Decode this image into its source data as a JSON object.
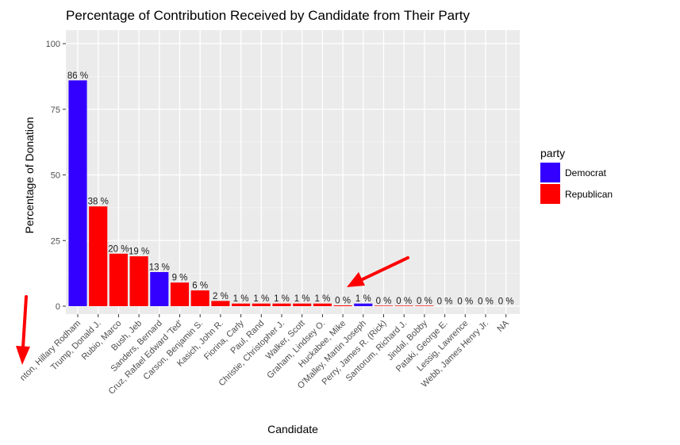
{
  "chart_data": {
    "type": "bar",
    "title": "Percentage of Contribution Received by Candidate from Their Party",
    "xlabel": "Candidate",
    "ylabel": "Percentage of Donation",
    "ylim": [
      0,
      100
    ],
    "yticks": [
      0,
      25,
      50,
      75,
      100
    ],
    "grid": true,
    "legend": {
      "title": "party",
      "placement": "right",
      "entries": [
        {
          "name": "Democrat",
          "color": "#3300ff"
        },
        {
          "name": "Republican",
          "color": "#ff0000"
        }
      ]
    },
    "categories": [
      "Clinton, Hillary Rodham",
      "Trump, Donald J.",
      "Rubio, Marco",
      "Bush, Jeb",
      "Sanders, Bernard",
      "Cruz, Rafael Edward 'Ted'",
      "Carson, Benjamin S.",
      "Kasich, John R.",
      "Fiorina, Carly",
      "Paul, Rand",
      "Christie, Christopher J.",
      "Walker, Scott",
      "Graham, Lindsey O.",
      "Huckabee, Mike",
      "O'Malley, Martin Joseph",
      "Perry, James R. (Rick)",
      "Santorum, Richard J.",
      "Jindal, Bobby",
      "Pataki, George E.",
      "Lessig, Lawrence",
      "Webb, James Henry Jr.",
      "NA"
    ],
    "x_tick_labels": [
      "nton, Hillary Rodham",
      "Trump, Donald J.",
      "Rubio, Marco",
      "Bush, Jeb",
      "Sanders, Bernard",
      "Cruz, Rafael Edward 'Ted'",
      "Carson, Benjamin S.",
      "Kasich, John R.",
      "Fiorina, Carly",
      "Paul, Rand",
      "Christie, Christopher J.",
      "Walker, Scott",
      "Graham, Lindsey O.",
      "Huckabee, Mike",
      "O'Malley, Martin Joseph",
      "Perry, James R. (Rick)",
      "Santorum, Richard J.",
      "Jindal, Bobby",
      "Pataki, George E.",
      "Lessig, Lawrence",
      "Webb, James Henry Jr.",
      "NA"
    ],
    "values": [
      86,
      38,
      20,
      19,
      13,
      9,
      6,
      2,
      1,
      1,
      1,
      1,
      1,
      0.3,
      1,
      0.2,
      0.2,
      0.2,
      0,
      0,
      0,
      0
    ],
    "party": [
      "Democrat",
      "Republican",
      "Republican",
      "Republican",
      "Democrat",
      "Republican",
      "Republican",
      "Republican",
      "Republican",
      "Republican",
      "Republican",
      "Republican",
      "Republican",
      "Republican",
      "Democrat",
      "Republican",
      "Republican",
      "Republican",
      "Republican",
      "Republican",
      "Republican",
      "Republican"
    ],
    "data_labels": [
      "86 %",
      "38 %",
      "20 %",
      "19 %",
      "13 %",
      "9 %",
      "6 %",
      "2 %",
      "1 %",
      "1 %",
      "1 %",
      "1 %",
      "1 %",
      "0 %",
      "1 %",
      "0 %",
      "0 %",
      "0 %",
      "0 %",
      "0 %",
      "0 %",
      "0 %"
    ],
    "annotations": [
      {
        "type": "arrow",
        "color": "#ff0000",
        "target": "Huckabee, Mike"
      },
      {
        "type": "arrow",
        "color": "#ff0000",
        "target": "truncated x tick label"
      }
    ]
  }
}
